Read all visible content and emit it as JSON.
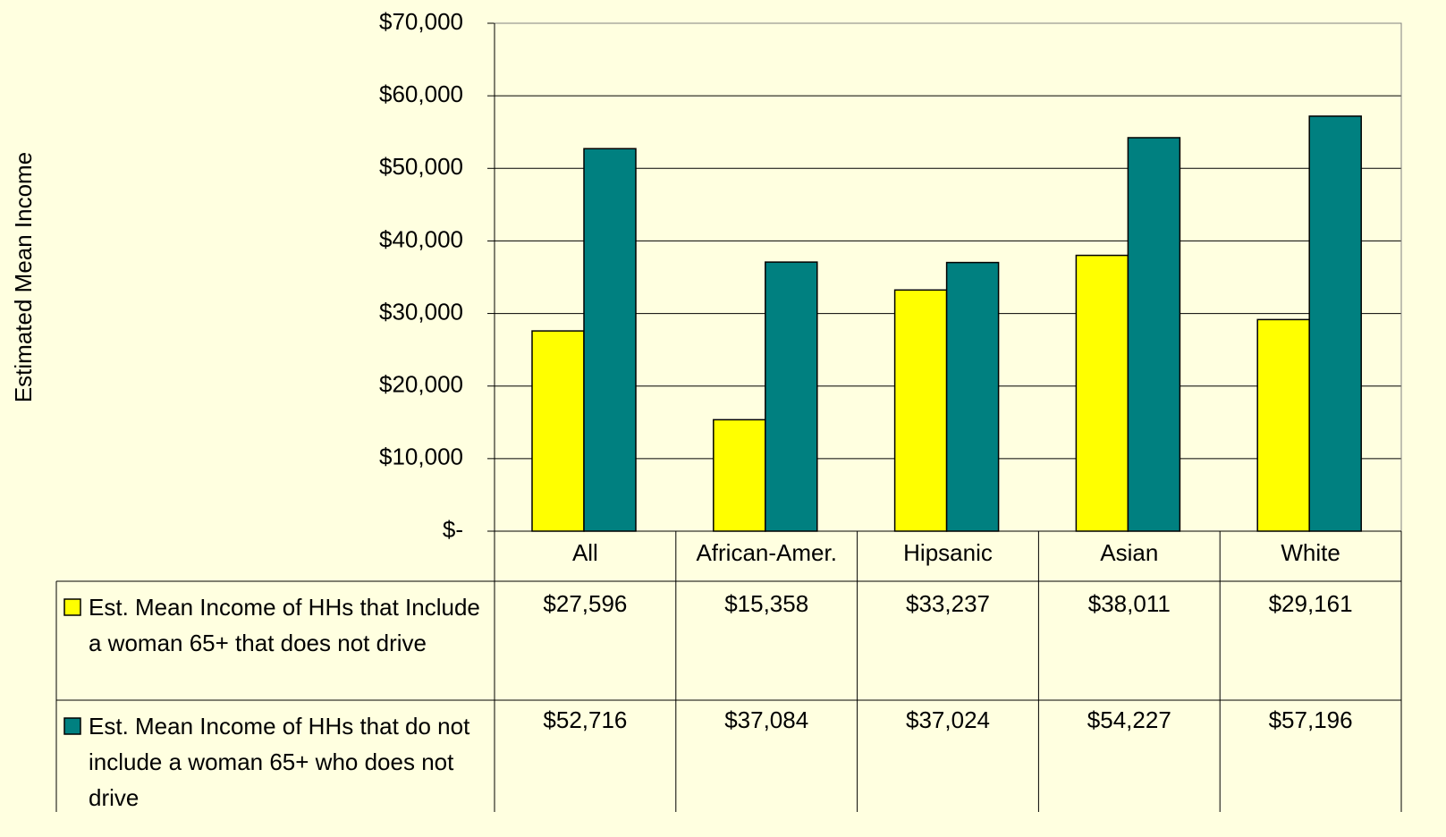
{
  "chart_data": {
    "type": "bar",
    "y_label": "Estimated Mean Income",
    "categories": [
      "All",
      "African-Amer.",
      "Hipsanic",
      "Asian",
      "White"
    ],
    "series": [
      {
        "name": "Est. Mean Income of HHs that Include a woman 65+ that does not drive",
        "color": "#ffff00",
        "values": [
          27596,
          15358,
          33237,
          38011,
          29161
        ],
        "value_labels": [
          "$27,596",
          "$15,358",
          "$33,237",
          "$38,011",
          "$29,161"
        ]
      },
      {
        "name": "Est. Mean Income of HHs that do not include a woman 65+ who does not drive",
        "color": "#008080",
        "values": [
          52716,
          37084,
          37024,
          54227,
          57196
        ],
        "value_labels": [
          "$52,716",
          "$37,084",
          "$37,024",
          "$54,227",
          "$57,196"
        ]
      }
    ],
    "ylim": [
      0,
      70000
    ],
    "yticks": [
      {
        "value": 0,
        "label": "$-"
      },
      {
        "value": 10000,
        "label": "$10,000"
      },
      {
        "value": 20000,
        "label": "$20,000"
      },
      {
        "value": 30000,
        "label": "$30,000"
      },
      {
        "value": 40000,
        "label": "$40,000"
      },
      {
        "value": 50000,
        "label": "$50,000"
      },
      {
        "value": 60000,
        "label": "$60,000"
      },
      {
        "value": 70000,
        "label": "$70,000"
      }
    ],
    "grid": true
  }
}
